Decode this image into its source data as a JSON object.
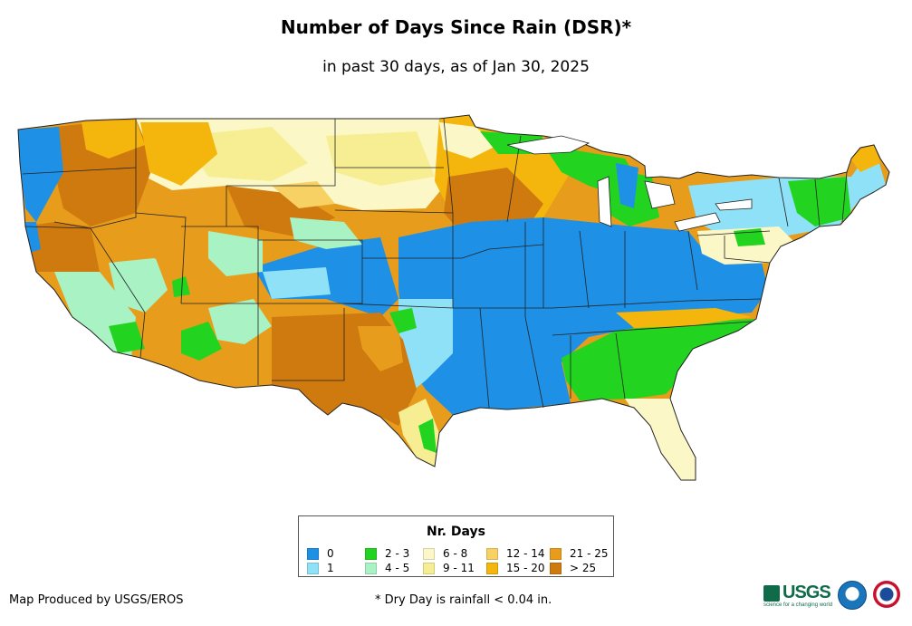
{
  "title": "Number of Days Since Rain (DSR)*",
  "subtitle": "in past 30 days, as of Jan 30, 2025",
  "legend": {
    "title": "Nr. Days",
    "items": [
      {
        "label": "0",
        "color": "#1e90e6"
      },
      {
        "label": "1",
        "color": "#8fe1f7"
      },
      {
        "label": "2 - 3",
        "color": "#22d41f"
      },
      {
        "label": "4 - 5",
        "color": "#a8f2c4"
      },
      {
        "label": "6 - 8",
        "color": "#fbf7c6"
      },
      {
        "label": "9 - 11",
        "color": "#f7ee93"
      },
      {
        "label": "12 - 14",
        "color": "#f8d164"
      },
      {
        "label": "15 - 20",
        "color": "#f4b60c"
      },
      {
        "label": "21 - 25",
        "color": "#e79d1b"
      },
      {
        "label": "> 25",
        "color": "#cf7a0f"
      }
    ]
  },
  "footer": {
    "credit": "Map Produced by USGS/EROS",
    "footnote": "* Dry Day is rainfall < 0.04 in."
  },
  "logos": {
    "usgs": "USGS",
    "usgs_tagline": "science for a changing world",
    "noaa": "noaa-logo",
    "nws": "nws-logo"
  }
}
